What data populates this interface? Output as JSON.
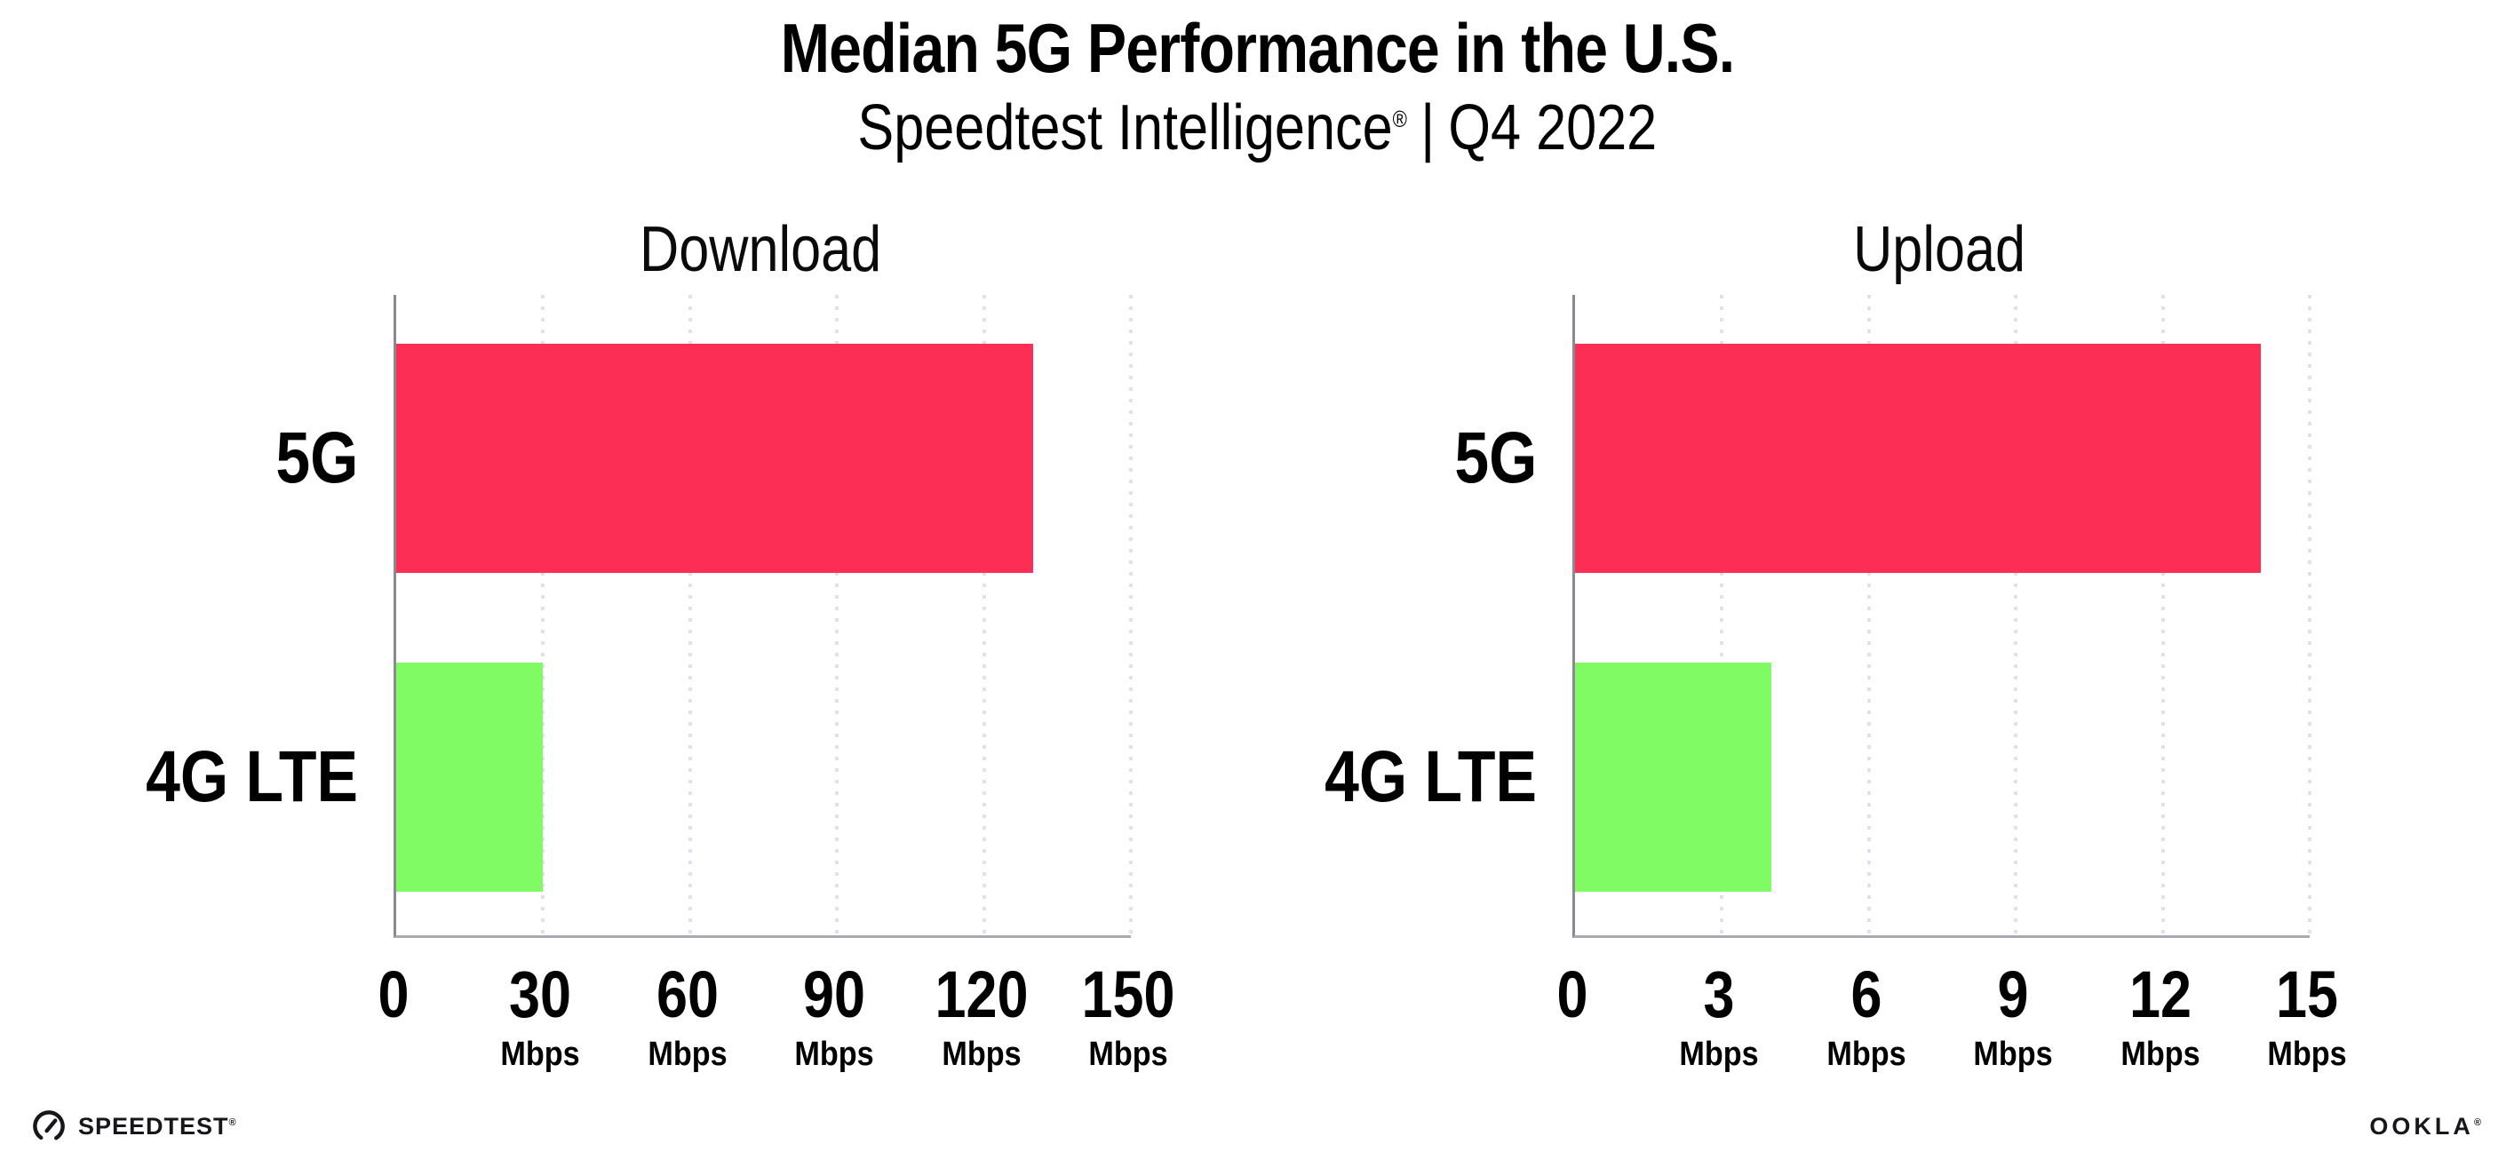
{
  "header": {
    "title": "Median 5G Performance in the U.S.",
    "subtitle": {
      "brand": "Speedtest Intelligence",
      "registered_mark": "®",
      "separator": "|",
      "period": "Q4 2022"
    }
  },
  "chart_data": [
    {
      "type": "bar",
      "orientation": "horizontal",
      "title": "Download",
      "categories": [
        "5G",
        "4G LTE"
      ],
      "values": [
        130,
        30
      ],
      "unit": "Mbps",
      "xlim": [
        0,
        150
      ],
      "xticks": [
        0,
        30,
        60,
        90,
        120,
        150
      ],
      "tick_unit": "Mbps",
      "bar_colors": [
        "#fc2e56",
        "#80fb63"
      ],
      "grid": "dotted-vertical",
      "legend": "none"
    },
    {
      "type": "bar",
      "orientation": "horizontal",
      "title": "Upload",
      "categories": [
        "5G",
        "4G LTE"
      ],
      "values": [
        14,
        4
      ],
      "unit": "Mbps",
      "xlim": [
        0,
        15
      ],
      "xticks": [
        0,
        3,
        6,
        9,
        12,
        15
      ],
      "tick_unit": "Mbps",
      "bar_colors": [
        "#fc2e56",
        "#80fb63"
      ],
      "grid": "dotted-vertical",
      "legend": "none"
    }
  ],
  "colors": {
    "bar_5g": "#fc2e56",
    "bar_4g_lte": "#80fb63",
    "gridline": "#e0e1ec",
    "y_axis": "#8a8a92",
    "x_axis": "#a9a9af",
    "text": "#000000",
    "logo": "#17161b",
    "background": "#ffffff"
  },
  "footer": {
    "speedtest": {
      "label": "SPEEDTEST",
      "trademark": "®",
      "icon": "speedtest-gauge-icon"
    },
    "ookla": {
      "label": "OOKLA",
      "trademark": "®"
    }
  }
}
